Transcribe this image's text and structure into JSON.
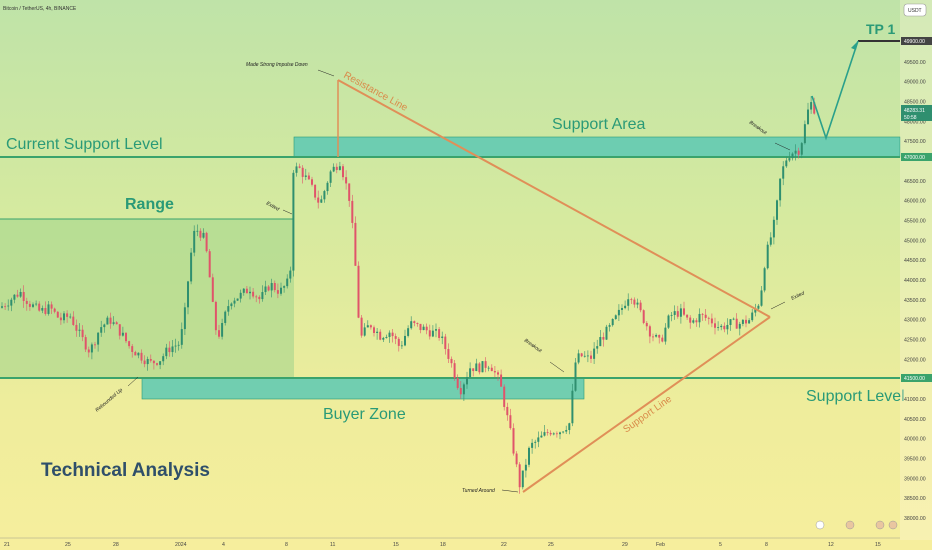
{
  "header": {
    "symbol_text": "Bitcoin / TetherUS, 4h, BINANCE",
    "currency_button": "USDT"
  },
  "colors": {
    "candle_up": "#2f8f6f",
    "candle_down": "#e0546a",
    "zone_fill": "#5cc8b4",
    "trendline": "#e08f58",
    "level_line": "#3aa36c",
    "range_fill": "#9fd38a"
  },
  "labels": {
    "current_support_level": "Current Support Level",
    "support_area": "Support Area",
    "range": "Range",
    "buyer_zone": "Buyer Zone",
    "support_level": "Support Level",
    "technical_analysis": "Technical Analysis",
    "resistance_line": "Resistance Line",
    "support_line": "Support Line",
    "tp1": "TP 1"
  },
  "annotations": {
    "made_strong_impulse": "Made Strong Impulse Down",
    "exited_left": "Exited",
    "exited_right": "Exited",
    "rebounded_up": "Rebounded Up",
    "breakout_left": "Breakout",
    "breakout_right": "Breakout",
    "turned_around": "Turned Around"
  },
  "price_tags": {
    "tp1_price": "49900.00",
    "current_price": "48283.31",
    "countdown": "50:58",
    "resistance_price": "47000.00",
    "support_price": "41500.00"
  },
  "chart_data": {
    "type": "candlestick",
    "title": "Bitcoin / TetherUS, 4h, BINANCE",
    "y_axis": {
      "ticks": [
        "50000.00",
        "49500.00",
        "49000.00",
        "48500.00",
        "48000.00",
        "47500.00",
        "46500.00",
        "46000.00",
        "45500.00",
        "45000.00",
        "44500.00",
        "44000.00",
        "43500.00",
        "43000.00",
        "42500.00",
        "42000.00",
        "41000.00",
        "40500.00",
        "40000.00",
        "39500.00",
        "39000.00",
        "38500.00",
        "38000.00"
      ],
      "range": [
        37700,
        50700
      ]
    },
    "x_axis": {
      "ticks": [
        "21",
        "25",
        "28",
        "2024",
        "4",
        "8",
        "11",
        "15",
        "18",
        "22",
        "25",
        "29",
        "Feb",
        "5",
        "8",
        "12",
        "15"
      ]
    },
    "levels": {
      "tp1": 49900,
      "resistance": 47000,
      "support": 41500,
      "support_area": [
        47000,
        47500
      ],
      "buyer_zone": [
        41000,
        41500
      ],
      "range_zone": [
        41500,
        45500
      ]
    },
    "trendlines": {
      "resistance_line": {
        "from": [
          "11",
          49000
        ],
        "to": [
          "8",
          43000
        ]
      },
      "support_line": {
        "from": [
          "22",
          38600
        ],
        "to": [
          "8",
          43000
        ]
      }
    },
    "candles_close_path": [
      [
        0,
        43300
      ],
      [
        10,
        43500
      ],
      [
        20,
        43700
      ],
      [
        30,
        43400
      ],
      [
        40,
        43200
      ],
      [
        50,
        43300
      ],
      [
        60,
        43000
      ],
      [
        70,
        43100
      ],
      [
        80,
        42600
      ],
      [
        90,
        42200
      ],
      [
        100,
        42800
      ],
      [
        110,
        43000
      ],
      [
        120,
        42700
      ],
      [
        130,
        42300
      ],
      [
        140,
        42100
      ],
      [
        150,
        41900
      ],
      [
        160,
        42000
      ],
      [
        170,
        42300
      ],
      [
        180,
        42400
      ],
      [
        185,
        43200
      ],
      [
        190,
        44500
      ],
      [
        195,
        45300
      ],
      [
        200,
        45200
      ],
      [
        205,
        45000
      ],
      [
        210,
        44000
      ],
      [
        215,
        42800
      ],
      [
        220,
        42600
      ],
      [
        225,
        43100
      ],
      [
        230,
        43500
      ],
      [
        240,
        43600
      ],
      [
        250,
        43800
      ],
      [
        260,
        43500
      ],
      [
        270,
        43900
      ],
      [
        280,
        43700
      ],
      [
        290,
        44000
      ],
      [
        293,
        46800
      ],
      [
        300,
        46800
      ],
      [
        310,
        46400
      ],
      [
        320,
        45900
      ],
      [
        330,
        46700
      ],
      [
        340,
        47000
      ],
      [
        350,
        46000
      ],
      [
        355,
        44500
      ],
      [
        360,
        42500
      ],
      [
        370,
        42900
      ],
      [
        380,
        42600
      ],
      [
        390,
        42700
      ],
      [
        400,
        42300
      ],
      [
        410,
        42900
      ],
      [
        420,
        42800
      ],
      [
        430,
        42700
      ],
      [
        440,
        42600
      ],
      [
        450,
        42000
      ],
      [
        460,
        41200
      ],
      [
        470,
        41800
      ],
      [
        480,
        41800
      ],
      [
        490,
        41900
      ],
      [
        500,
        41400
      ],
      [
        510,
        40200
      ],
      [
        520,
        38800
      ],
      [
        530,
        39800
      ],
      [
        540,
        40000
      ],
      [
        550,
        40200
      ],
      [
        560,
        40200
      ],
      [
        570,
        40400
      ],
      [
        575,
        41900
      ],
      [
        580,
        42100
      ],
      [
        590,
        42000
      ],
      [
        600,
        42500
      ],
      [
        610,
        42800
      ],
      [
        620,
        43200
      ],
      [
        630,
        43700
      ],
      [
        640,
        43200
      ],
      [
        650,
        42700
      ],
      [
        660,
        42400
      ],
      [
        670,
        43100
      ],
      [
        680,
        43200
      ],
      [
        690,
        42900
      ],
      [
        700,
        43100
      ],
      [
        710,
        43000
      ],
      [
        720,
        42800
      ],
      [
        730,
        42900
      ],
      [
        740,
        42900
      ],
      [
        750,
        43000
      ],
      [
        760,
        43500
      ],
      [
        765,
        44500
      ],
      [
        770,
        45000
      ],
      [
        775,
        45500
      ],
      [
        780,
        46500
      ],
      [
        785,
        47000
      ],
      [
        790,
        47200
      ],
      [
        800,
        47300
      ],
      [
        810,
        48500
      ],
      [
        815,
        48283
      ]
    ]
  }
}
